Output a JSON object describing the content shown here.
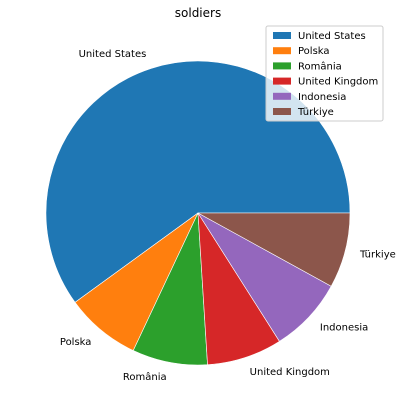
{
  "chart_data": {
    "type": "pie",
    "title": "soldiers",
    "categories": [
      "United States",
      "Polska",
      "România",
      "United Kingdom",
      "Indonesia",
      "Türkiye"
    ],
    "values": [
      60,
      8,
      8,
      8,
      8,
      8
    ],
    "colors": [
      "#1f77b4",
      "#ff7f0e",
      "#2ca02c",
      "#d62728",
      "#9467bd",
      "#8c564b"
    ],
    "start_angle_deg": 0,
    "direction": "counterclockwise",
    "legend": {
      "placement": "top-right",
      "entries": [
        "United States",
        "Polska",
        "România",
        "United Kingdom",
        "Indonesia",
        "Türkiye"
      ]
    }
  }
}
